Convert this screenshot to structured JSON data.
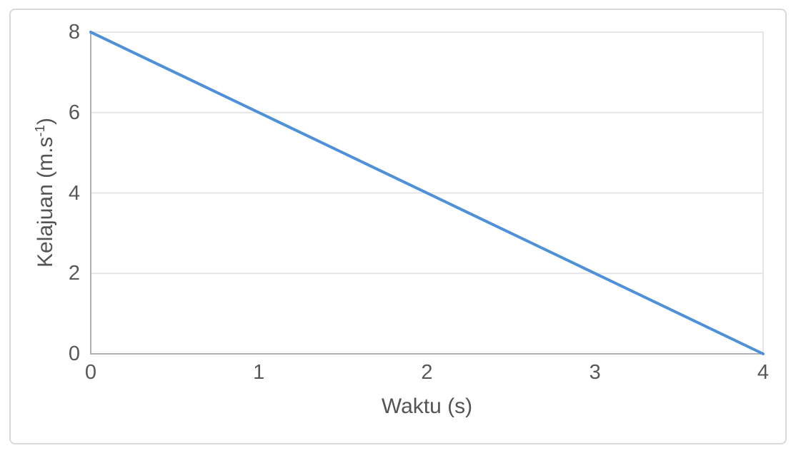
{
  "chart_data": {
    "type": "line",
    "title": "",
    "xlabel": "Waktu (s)",
    "ylabel": "Kelajuan (m.s⁻¹)",
    "ylabel_parts": {
      "prefix": "Kelajuan (m.s",
      "superscript": "-1",
      "suffix": ")"
    },
    "series": [
      {
        "name": "Kelajuan",
        "points": [
          {
            "x": 0,
            "y": 8
          },
          {
            "x": 4,
            "y": 0
          }
        ]
      }
    ],
    "xticks": [
      0,
      1,
      2,
      3,
      4
    ],
    "yticks": [
      0,
      2,
      4,
      6,
      8
    ],
    "xlim": [
      0,
      4
    ],
    "ylim": [
      0,
      8
    ],
    "grid": "horizontal-only",
    "legend": "none",
    "colors": {
      "line": "#4E91D9",
      "gridline": "#e5e5e7",
      "plot_border": "#e5e5e7",
      "axis": "#b1b1b4",
      "tick_text": "#58585b",
      "title_text": "#545457",
      "card_border": "#d9d9d9",
      "background": "#ffffff"
    }
  }
}
